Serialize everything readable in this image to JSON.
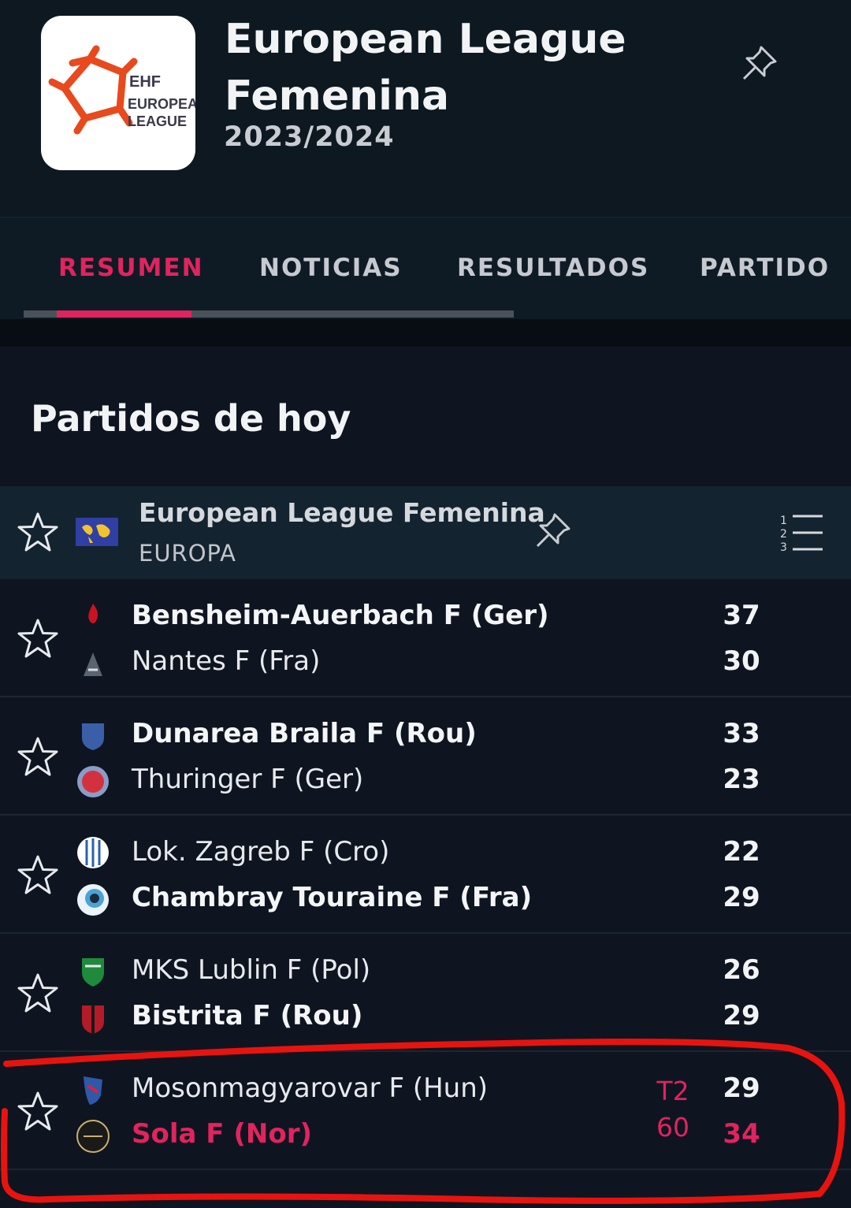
{
  "header": {
    "logo_text": [
      "EHF",
      "EUROPEAN",
      "LEAGUE"
    ],
    "title": "European League Femenina",
    "season": "2023/2024"
  },
  "tabs": [
    {
      "label": "RESUMEN",
      "active": true
    },
    {
      "label": "NOTICIAS",
      "active": false
    },
    {
      "label": "RESULTADOS",
      "active": false
    },
    {
      "label": "PARTIDOS",
      "active": false
    }
  ],
  "section": {
    "title": "Partidos de hoy"
  },
  "league": {
    "name": "European League Femenina",
    "region": "EUROPA",
    "standings_digits": [
      "1",
      "2",
      "3"
    ]
  },
  "matches": [
    {
      "home": {
        "name": "Bensheim-Auerbach F (Ger)",
        "score": "37",
        "winner": true,
        "logo_color": "#c9141f"
      },
      "away": {
        "name": "Nantes F (Fra)",
        "score": "30",
        "winner": false,
        "logo_color": "#5a6370"
      }
    },
    {
      "home": {
        "name": "Dunarea Braila F (Rou)",
        "score": "33",
        "winner": true,
        "logo_color": "#3a5fa8"
      },
      "away": {
        "name": "Thuringer F (Ger)",
        "score": "23",
        "winner": false,
        "logo_color": "#d4313f"
      }
    },
    {
      "home": {
        "name": "Lok. Zagreb F (Cro)",
        "score": "22",
        "winner": false,
        "logo_color": "#2c5fb0"
      },
      "away": {
        "name": "Chambray Touraine F (Fra)",
        "score": "29",
        "winner": true,
        "logo_color": "#4aa3d8"
      }
    },
    {
      "home": {
        "name": "MKS Lublin F (Pol)",
        "score": "26",
        "winner": false,
        "logo_color": "#1f8a3c"
      },
      "away": {
        "name": "Bistrita F (Rou)",
        "score": "29",
        "winner": true,
        "logo_color": "#b31b28"
      }
    },
    {
      "home": {
        "name": "Mosonmagyarovar F (Hun)",
        "score": "29",
        "winner": false,
        "logo_color": "#2f58a8"
      },
      "away": {
        "name": "Sola F (Nor)",
        "score": "34",
        "winner": false,
        "live": true,
        "logo_color": "#1a1a1a"
      },
      "status": {
        "period": "T2",
        "minute": "60"
      },
      "live": true
    }
  ],
  "colors": {
    "accent": "#e0245e",
    "background": "#0e1520",
    "highlight_annotation": "#e8130f"
  }
}
